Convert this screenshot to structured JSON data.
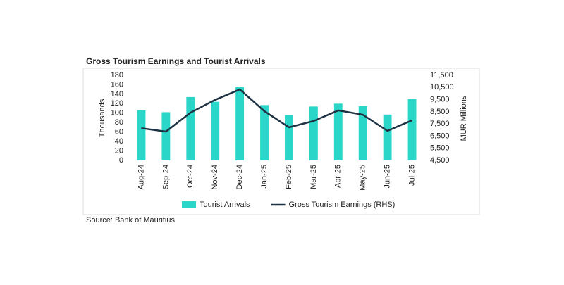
{
  "chart_data": {
    "type": "bar-line",
    "title": "Gross Tourism Earnings and Tourist Arrivals",
    "source": "Source: Bank of Mauritius",
    "y_label": "Thousands",
    "y2_label": "MUR Millions",
    "categories": [
      "Aug-24",
      "Sep-24",
      "Oct-24",
      "Nov-24",
      "Dec-24",
      "Jan-25",
      "Feb-25",
      "Mar-25",
      "Apr-25",
      "May-25",
      "Jun-25",
      "Jul-25"
    ],
    "series": [
      {
        "name": "Tourist Arrivals",
        "type": "bar",
        "color": "#2ad6c8",
        "values": [
          106,
          102,
          134,
          124,
          155,
          117,
          96,
          114,
          120,
          115,
          97,
          130
        ]
      },
      {
        "name": "Gross Tourism Earnings (RHS)",
        "type": "line",
        "axis": "y2",
        "color": "#1f3344",
        "values": [
          7150,
          6870,
          8430,
          9480,
          10340,
          8550,
          7220,
          7740,
          8610,
          8260,
          6930,
          7800
        ]
      }
    ],
    "ylim": [
      0,
      180
    ],
    "yticks": [
      0,
      20,
      40,
      60,
      80,
      100,
      120,
      140,
      160,
      180
    ],
    "y2lim": [
      4500,
      11500
    ],
    "y2ticks": [
      {
        "value": 4500,
        "label": "4,500"
      },
      {
        "value": 5500,
        "label": "5,500"
      },
      {
        "value": 6500,
        "label": "6,500"
      },
      {
        "value": 7500,
        "label": "7,500"
      },
      {
        "value": 8500,
        "label": "8,500"
      },
      {
        "value": 9500,
        "label": "9,500"
      },
      {
        "value": 10500,
        "label": "10,500"
      },
      {
        "value": 11500,
        "label": "11,500"
      }
    ],
    "legend": "bottom"
  }
}
